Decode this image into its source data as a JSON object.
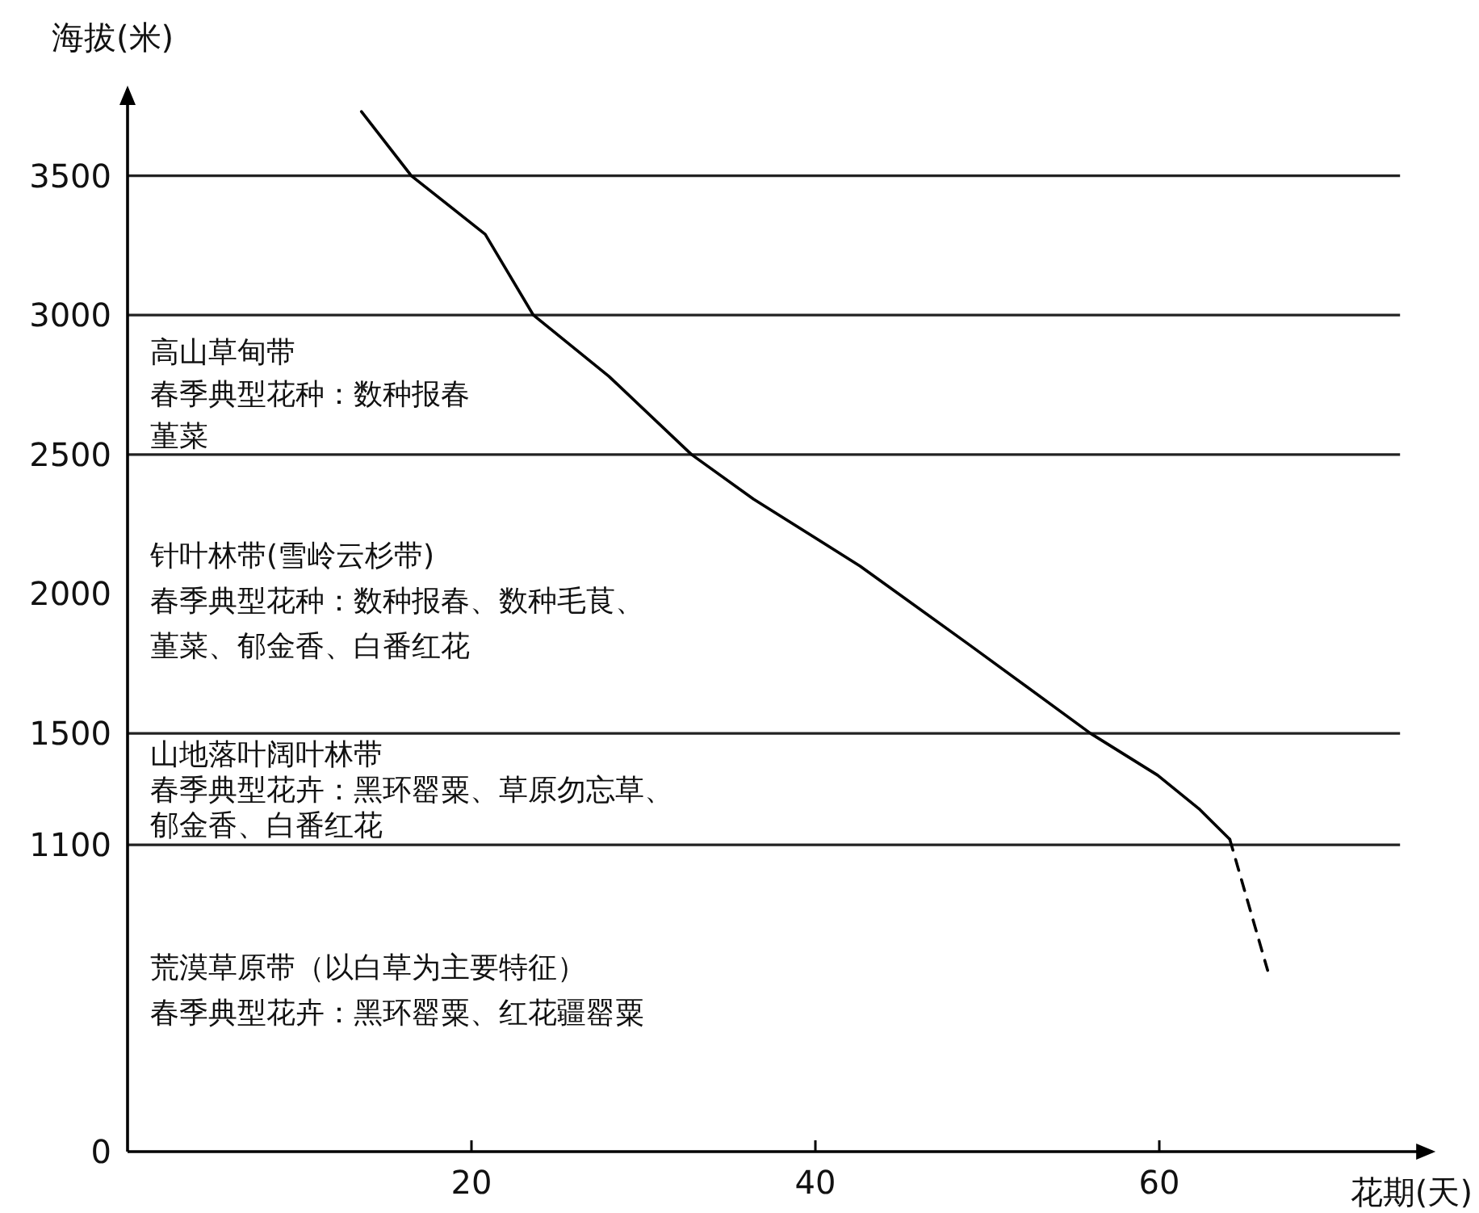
{
  "chart_data": {
    "type": "line",
    "xlabel": "花期(天)",
    "ylabel": "海拔(米)",
    "xlim": [
      0,
      74
    ],
    "ylim": [
      0,
      3800
    ],
    "xticks": [
      20,
      40,
      60
    ],
    "yticks": [
      0,
      1100,
      1500,
      2000,
      2500,
      3000,
      3500
    ],
    "series": [
      {
        "color": "#000000",
        "line_style": "solid",
        "x": [
          13.6,
          16.5,
          20.8,
          23.6,
          28.0,
          32.8,
          36.4,
          42.6,
          48.9,
          56.0,
          59.9,
          62.3,
          64.1
        ],
        "values": [
          3730,
          3500,
          3290,
          3000,
          2780,
          2500,
          2340,
          2100,
          1820,
          1500,
          1350,
          1230,
          1120
        ]
      },
      {
        "color": "#000000",
        "line_style": "dashed",
        "x": [
          64.1,
          66.3
        ],
        "values": [
          1120,
          650
        ]
      }
    ],
    "ref_lines": [
      {
        "axis": "y",
        "value": 1100,
        "color": "#222222"
      },
      {
        "axis": "y",
        "value": 1500,
        "color": "#222222"
      },
      {
        "axis": "y",
        "value": 2500,
        "color": "#222222"
      },
      {
        "axis": "y",
        "value": 3000,
        "color": "#222222"
      },
      {
        "axis": "y",
        "value": 3500,
        "color": "#222222"
      }
    ],
    "annotations": [
      "高山草甸带",
      "春季典型花种：数种报春",
      "堇菜",
      "针叶林带(雪岭云杉带)",
      "春季典型花种：数种报春、数种毛茛、",
      "堇菜、郁金香、白番红花",
      "山地落叶阔叶林带",
      "春季典型花卉：黑环罂粟、草原勿忘草、",
      "郁金香、白番红花",
      "荒漠草原带（以白草为主要特征）",
      "春季典型花卉：黑环罂粟、红花疆罂粟"
    ]
  }
}
